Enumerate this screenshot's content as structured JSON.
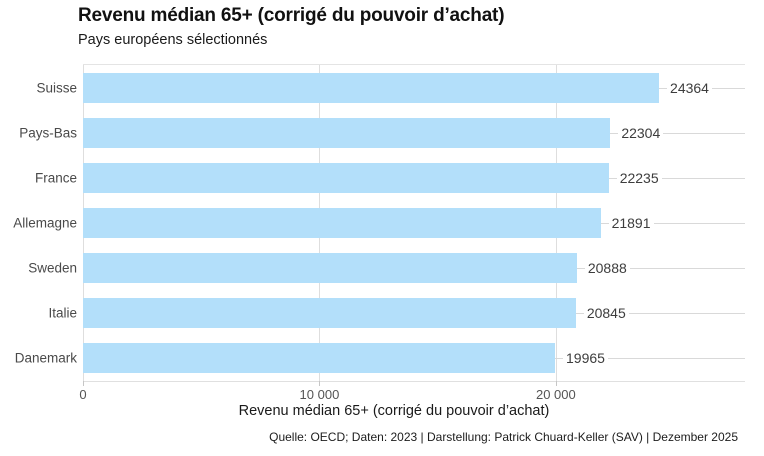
{
  "header": {
    "title": "Revenu médian 65+ (corrigé du pouvoir d’achat)",
    "subtitle": "Pays européens sélectionnés"
  },
  "chart_data": {
    "type": "bar",
    "orientation": "horizontal",
    "title": "Revenu médian 65+ (corrigé du pouvoir d’achat)",
    "subtitle": "Pays européens sélectionnés",
    "categories": [
      "Suisse",
      "Pays-Bas",
      "France",
      "Allemagne",
      "Sweden",
      "Italie",
      "Danemark"
    ],
    "values": [
      24364,
      22304,
      22235,
      21891,
      20888,
      20845,
      19965
    ],
    "value_labels": [
      "24364",
      "22304",
      "22235",
      "21891",
      "20888",
      "20845",
      "19965"
    ],
    "xlabel": "Revenu médian 65+ (corrigé du pouvoir d’achat)",
    "ylabel": "",
    "xlim": [
      0,
      28000
    ],
    "x_ticks": [
      {
        "value": 0,
        "label": "0"
      },
      {
        "value": 10000,
        "label": "10 000"
      },
      {
        "value": 20000,
        "label": "20 000"
      }
    ],
    "grid": "vertical",
    "legend": "none",
    "bar_color": "#b3dffa",
    "gridline_color": "#dedede",
    "leader_line_color": "#d9d9d9"
  },
  "footer": {
    "source": "Quelle: OECD; Daten: 2023 | Darstellung: Patrick Chuard-Keller (SAV) | Dezember 2025"
  }
}
